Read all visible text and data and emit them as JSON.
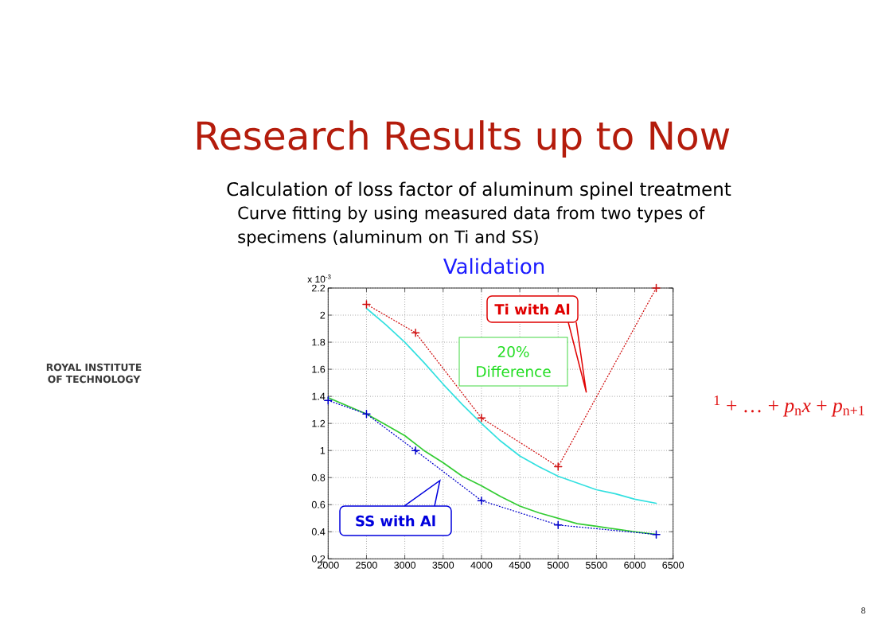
{
  "chart_data": {
    "type": "line",
    "title": "Research Results up to Now",
    "subtitle": "Validation",
    "xlim": [
      2000,
      6500
    ],
    "ylim": [
      0.2,
      2.2
    ],
    "xticks": [
      2000,
      2500,
      3000,
      3500,
      4000,
      4500,
      5000,
      5500,
      6000,
      6500
    ],
    "yticks": [
      0.2,
      0.4,
      0.6,
      0.8,
      1,
      1.2,
      1.4,
      1.6,
      1.8,
      2,
      2.2
    ],
    "grid": true,
    "series": [
      {
        "color": "#33e0e0",
        "marker": "none",
        "line_style": "solid",
        "x": [
          2500,
          2750,
          3000,
          3250,
          3500,
          3750,
          4000,
          4250,
          4500,
          4750,
          5000,
          5250,
          5500,
          5750,
          6000,
          6280
        ],
        "values": [
          2.05,
          1.93,
          1.8,
          1.65,
          1.49,
          1.34,
          1.2,
          1.07,
          0.96,
          0.88,
          0.81,
          0.76,
          0.71,
          0.68,
          0.64,
          0.61
        ]
      },
      {
        "color": "#33cc33",
        "marker": "none",
        "line_style": "solid",
        "x": [
          2000,
          2250,
          2500,
          2750,
          3000,
          3250,
          3500,
          3750,
          4000,
          4250,
          4500,
          4750,
          5000,
          5250,
          5500,
          5750,
          6000,
          6280
        ],
        "values": [
          1.39,
          1.33,
          1.27,
          1.19,
          1.11,
          1.0,
          0.91,
          0.81,
          0.74,
          0.66,
          0.59,
          0.54,
          0.5,
          0.46,
          0.44,
          0.42,
          0.4,
          0.38
        ]
      },
      {
        "color": "#d01010",
        "marker": "cross",
        "line_style": "dotted",
        "x": [
          2500,
          3140,
          4000,
          5000,
          6280
        ],
        "values": [
          2.08,
          1.87,
          1.24,
          0.88,
          2.2
        ]
      },
      {
        "color": "#0000cc",
        "marker": "cross",
        "line_style": "dotted",
        "x": [
          2000,
          2500,
          3140,
          4000,
          5000,
          6280
        ],
        "values": [
          1.37,
          1.27,
          1.0,
          0.63,
          0.45,
          0.38
        ]
      }
    ],
    "annotations": [
      "Calculation of loss factor of aluminum spinel treatment",
      "Curve fitting by using measured data from two types of specimens (aluminum on Ti and SS)",
      "x 10$^{-3}$",
      "Ti with Al",
      "SS with Al",
      "20% Difference",
      "$^{1}$ + … + *p*$_{n}$*x* + *p*$_{n+1}$",
      "ROYAL INSTITUTE OF TECHNOLOGY",
      "8"
    ]
  }
}
